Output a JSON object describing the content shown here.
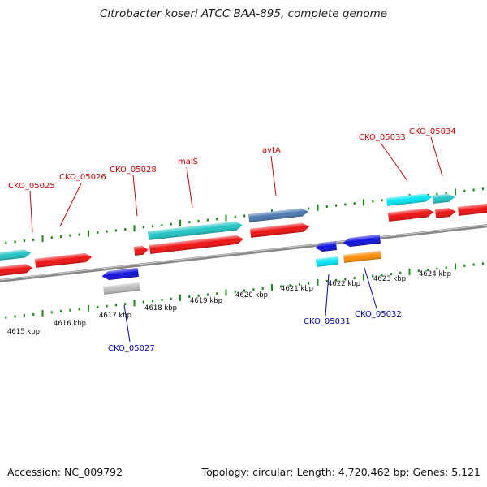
{
  "title": "Citrobacter koseri ATCC BAA-895, complete genome",
  "footer": {
    "accession": "Accession: NC_009792",
    "summary": "Topology: circular; Length: 4,720,462 bp; Genes: 5,121"
  },
  "colors": {
    "backbone": "#888888",
    "ruler_tick": "#1a8a1a",
    "label_forward": "#cc0000",
    "label_reverse": "#0000bb"
  },
  "ruler": {
    "unit": "kbp",
    "labels": [
      "4615 kbp",
      "4616 kbp",
      "4617 kbp",
      "4618 kbp",
      "4619 kbp",
      "4620 kbp",
      "4621 kbp",
      "4622 kbp",
      "4623 kbp",
      "4624 kbp"
    ]
  },
  "genes": [
    {
      "id": "g1",
      "color": "#ee1111",
      "dir": "right",
      "strand": "+"
    },
    {
      "id": "g2",
      "color": "#ee1111",
      "dir": "right",
      "strand": "+"
    },
    {
      "id": "g3",
      "color": "#22c4c4",
      "dir": "right",
      "strand": "+"
    },
    {
      "id": "g4",
      "color": "#ee1111",
      "dir": "right",
      "strand": "+"
    },
    {
      "id": "g5",
      "color": "#ee1111",
      "dir": "right",
      "strand": "+"
    },
    {
      "id": "g6",
      "color": "#22c4c4",
      "dir": "right",
      "strand": "+"
    },
    {
      "id": "g7",
      "color": "#4a7ab0",
      "dir": "right",
      "strand": "+"
    },
    {
      "id": "g8",
      "color": "#ee1111",
      "dir": "right",
      "strand": "+"
    },
    {
      "id": "g9",
      "color": "#00e5f0",
      "dir": "right",
      "strand": "+"
    },
    {
      "id": "g10",
      "color": "#22c4c4",
      "dir": "right",
      "strand": "+"
    },
    {
      "id": "g11",
      "color": "#ee1111",
      "dir": "right",
      "strand": "+"
    },
    {
      "id": "g12",
      "color": "#ee1111",
      "dir": "right",
      "strand": "+"
    },
    {
      "id": "g13",
      "color": "#ee1111",
      "dir": "right",
      "strand": "+"
    },
    {
      "id": "g14",
      "color": "#1111dd",
      "dir": "left",
      "strand": "-"
    },
    {
      "id": "g15",
      "color": "#bbbbbb",
      "dir": "none",
      "strand": "-"
    },
    {
      "id": "g16",
      "color": "#1111dd",
      "dir": "left",
      "strand": "-"
    },
    {
      "id": "g17",
      "color": "#1111dd",
      "dir": "left",
      "strand": "-"
    },
    {
      "id": "g18",
      "color": "#00e5f0",
      "dir": "none",
      "strand": "-"
    },
    {
      "id": "g19",
      "color": "#ff8c00",
      "dir": "none",
      "strand": "-"
    }
  ],
  "labels": [
    {
      "text": "CKO_05025",
      "strand": "+"
    },
    {
      "text": "CKO_05026",
      "strand": "+"
    },
    {
      "text": "CKO_05028",
      "strand": "+"
    },
    {
      "text": "malS",
      "strand": "+"
    },
    {
      "text": "avtA",
      "strand": "+"
    },
    {
      "text": "CKO_05033",
      "strand": "+"
    },
    {
      "text": "CKO_05034",
      "strand": "+"
    },
    {
      "text": "CKO_05027",
      "strand": "-"
    },
    {
      "text": "CKO_05031",
      "strand": "-"
    },
    {
      "text": "CKO_05032",
      "strand": "-"
    }
  ]
}
